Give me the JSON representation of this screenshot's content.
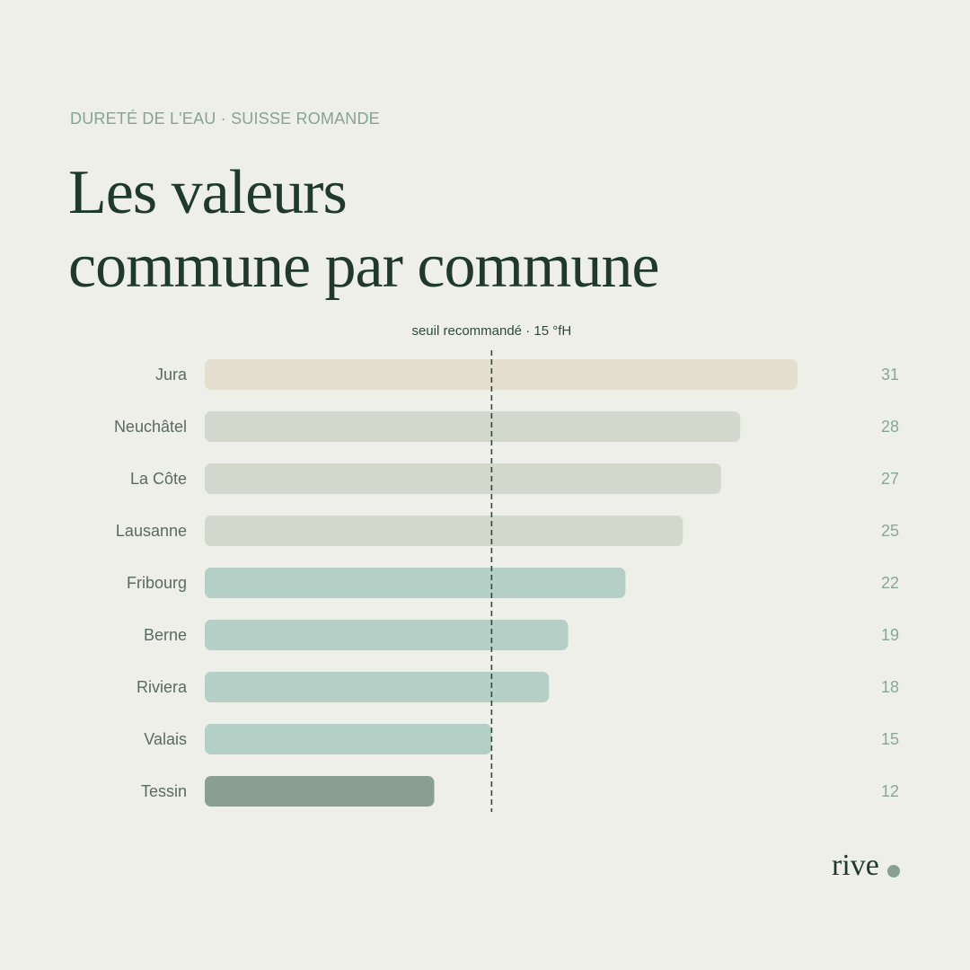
{
  "header": {
    "eyebrow": "DURETÉ DE L'EAU · SUISSE ROMANDE",
    "title_line1": "Les valeurs",
    "title_line2": "commune par commune"
  },
  "brand": {
    "name": "rive"
  },
  "colors": {
    "background": "#eeefe8",
    "text_dark": "#1f3a2d",
    "text_muted": "#5a6b61",
    "value_text": "#8aa696",
    "accent_sage": "#88a090"
  },
  "chart_data": {
    "type": "bar",
    "orientation": "horizontal",
    "title": "",
    "xlabel": "",
    "ylabel": "",
    "xlim": [
      0,
      31
    ],
    "grid": false,
    "categories": [
      "Jura",
      "Neuchâtel",
      "La Côte",
      "Lausanne",
      "Fribourg",
      "Berne",
      "Riviera",
      "Valais",
      "Tessin"
    ],
    "values": [
      31,
      28,
      27,
      25,
      22,
      19,
      18,
      15,
      12
    ],
    "bar_colors": [
      "#e5dfd0",
      "#d2d8cb",
      "#d2d8cb",
      "#d2d8cb",
      "#b4cfc6",
      "#b4cfc6",
      "#b4cfc6",
      "#b4cfc6",
      "#8a9f91"
    ],
    "reference_line": {
      "value": 15,
      "label": "seuil recommandé · 15 °fH",
      "color": "#2d4a3c",
      "style": "dashed"
    }
  }
}
